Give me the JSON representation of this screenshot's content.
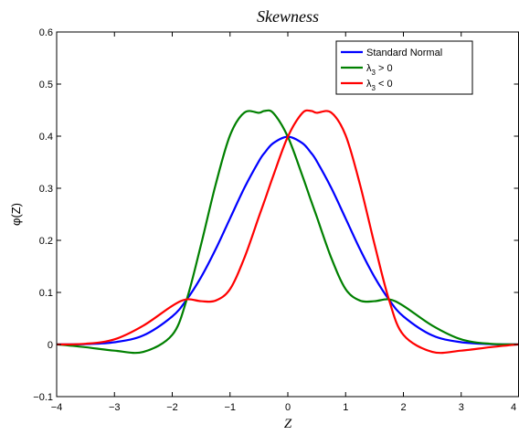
{
  "chart_data": {
    "type": "line",
    "title": "Skewness",
    "xlabel": "Z",
    "ylabel": "φ(Z)",
    "xlim": [
      -4,
      4
    ],
    "ylim": [
      -0.1,
      0.6
    ],
    "xticks": [
      -4,
      -3,
      -2,
      -1,
      0,
      1,
      2,
      3,
      4
    ],
    "xtick_labels": [
      "−4",
      "−3",
      "−2",
      "−1",
      "0",
      "1",
      "2",
      "3",
      "4"
    ],
    "yticks": [
      -0.1,
      0,
      0.1,
      0.2,
      0.3,
      0.4,
      0.5,
      0.6
    ],
    "ytick_labels": [
      "−0.1",
      "0",
      "0.1",
      "0.2",
      "0.3",
      "0.4",
      "0.5",
      "0.6"
    ],
    "grid": false,
    "legend_position": "top-right",
    "x": [
      -4,
      -3.5,
      -3,
      -2.5,
      -2,
      -1.75,
      -1.5,
      -1.25,
      -1,
      -0.75,
      -0.5,
      -0.4,
      -0.25,
      0,
      0.25,
      0.4,
      0.5,
      0.75,
      1,
      1.25,
      1.5,
      1.75,
      2,
      2.5,
      3,
      3.5,
      4
    ],
    "series": [
      {
        "name": "Standard Normal",
        "color": "#0000ff",
        "values": [
          0.0001,
          0.0009,
          0.0044,
          0.0175,
          0.054,
          0.0863,
          0.1295,
          0.1826,
          0.242,
          0.3011,
          0.3521,
          0.3683,
          0.3867,
          0.3989,
          0.3867,
          0.3683,
          0.3521,
          0.3011,
          0.242,
          0.1826,
          0.1295,
          0.0863,
          0.054,
          0.0175,
          0.0044,
          0.0009,
          0.0001
        ]
      },
      {
        "name": "λ3 > 0",
        "legend_base": "λ",
        "legend_sub": "3",
        "legend_rest": " > 0",
        "color": "#008000",
        "values": [
          0.0004,
          -0.0051,
          -0.0117,
          -0.0141,
          0.0185,
          0.0862,
          0.1925,
          0.3066,
          0.4016,
          0.4454,
          0.4449,
          0.4485,
          0.4443,
          0.3989,
          0.3246,
          0.2767,
          0.2456,
          0.1668,
          0.1064,
          0.0843,
          0.0832,
          0.0867,
          0.0743,
          0.0363,
          0.0099,
          0.0014,
          0.0001
        ]
      },
      {
        "name": "λ3 < 0",
        "legend_base": "λ",
        "legend_sub": "3",
        "legend_rest": " < 0",
        "color": "#ff0000",
        "values": [
          0.0001,
          0.0014,
          0.0099,
          0.0363,
          0.0743,
          0.0867,
          0.0832,
          0.0843,
          0.1064,
          0.1668,
          0.2456,
          0.2767,
          0.3246,
          0.3989,
          0.4443,
          0.4485,
          0.4449,
          0.4454,
          0.4016,
          0.3066,
          0.1925,
          0.0862,
          0.0185,
          -0.0141,
          -0.0117,
          -0.0051,
          0.0004
        ]
      }
    ]
  }
}
